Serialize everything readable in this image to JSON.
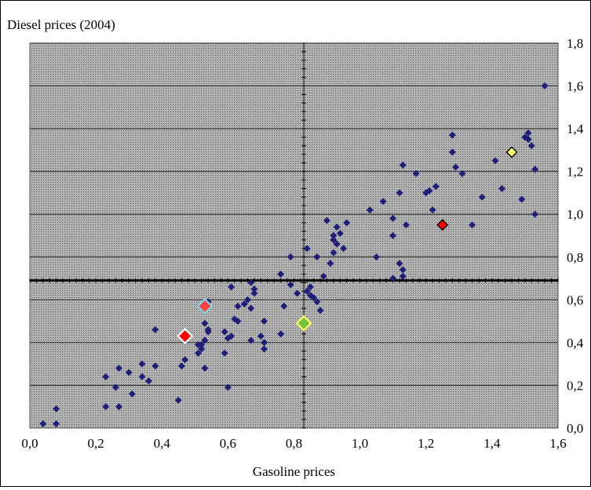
{
  "chart_data": {
    "type": "scatter",
    "title": "",
    "xlabel": "Gasoline prices",
    "ylabel": "Diesel prices (2004)",
    "xlim": [
      0.0,
      1.6
    ],
    "ylim": [
      0.0,
      1.8
    ],
    "xticks": [
      "0,0",
      "0,2",
      "0,4",
      "0,6",
      "0,8",
      "1,0",
      "1,2",
      "1,4",
      "1,6"
    ],
    "yticks": [
      "0,0",
      "0,2",
      "0,4",
      "0,6",
      "0,8",
      "1,0",
      "1,2",
      "1,4",
      "1,6",
      "1,8"
    ],
    "grid": true,
    "reference_lines": {
      "vertical_x": 0.83,
      "horizontal_y": 0.69
    },
    "colors": {
      "plot_background": "#a9a9a9",
      "points": "#1f1f7a",
      "reference_line": "#000000",
      "vertical_line": "#333333"
    },
    "series": [
      {
        "marker": "small-diamond",
        "color": "#1f1f7a",
        "points": [
          [
            0.04,
            0.02
          ],
          [
            0.08,
            0.02
          ],
          [
            0.08,
            0.09
          ],
          [
            0.23,
            0.1
          ],
          [
            0.23,
            0.24
          ],
          [
            0.26,
            0.19
          ],
          [
            0.27,
            0.1
          ],
          [
            0.27,
            0.28
          ],
          [
            0.3,
            0.26
          ],
          [
            0.31,
            0.16
          ],
          [
            0.34,
            0.3
          ],
          [
            0.34,
            0.24
          ],
          [
            0.36,
            0.22
          ],
          [
            0.38,
            0.29
          ],
          [
            0.38,
            0.46
          ],
          [
            0.45,
            0.13
          ],
          [
            0.46,
            0.29
          ],
          [
            0.47,
            0.32
          ],
          [
            0.51,
            0.35
          ],
          [
            0.51,
            0.39
          ],
          [
            0.52,
            0.37
          ],
          [
            0.52,
            0.39
          ],
          [
            0.53,
            0.28
          ],
          [
            0.53,
            0.41
          ],
          [
            0.53,
            0.49
          ],
          [
            0.54,
            0.45
          ],
          [
            0.54,
            0.46
          ],
          [
            0.54,
            0.59
          ],
          [
            0.59,
            0.35
          ],
          [
            0.59,
            0.45
          ],
          [
            0.6,
            0.42
          ],
          [
            0.6,
            0.19
          ],
          [
            0.61,
            0.43
          ],
          [
            0.61,
            0.66
          ],
          [
            0.62,
            0.51
          ],
          [
            0.63,
            0.5
          ],
          [
            0.63,
            0.57
          ],
          [
            0.65,
            0.58
          ],
          [
            0.66,
            0.6
          ],
          [
            0.67,
            0.56
          ],
          [
            0.67,
            0.41
          ],
          [
            0.67,
            0.68
          ],
          [
            0.68,
            0.65
          ],
          [
            0.68,
            0.63
          ],
          [
            0.7,
            0.43
          ],
          [
            0.71,
            0.4
          ],
          [
            0.71,
            0.37
          ],
          [
            0.71,
            0.5
          ],
          [
            0.76,
            0.44
          ],
          [
            0.76,
            0.72
          ],
          [
            0.77,
            0.57
          ],
          [
            0.79,
            0.8
          ],
          [
            0.79,
            0.67
          ],
          [
            0.81,
            0.63
          ],
          [
            0.84,
            0.84
          ],
          [
            0.84,
            0.64
          ],
          [
            0.85,
            0.62
          ],
          [
            0.85,
            0.66
          ],
          [
            0.86,
            0.61
          ],
          [
            0.87,
            0.59
          ],
          [
            0.88,
            0.55
          ],
          [
            0.87,
            0.8
          ],
          [
            0.89,
            0.71
          ],
          [
            0.9,
            0.97
          ],
          [
            0.91,
            0.77
          ],
          [
            0.92,
            0.82
          ],
          [
            0.92,
            0.88
          ],
          [
            0.92,
            0.9
          ],
          [
            0.93,
            0.94
          ],
          [
            0.93,
            0.86
          ],
          [
            0.94,
            0.91
          ],
          [
            0.95,
            0.84
          ],
          [
            0.96,
            0.96
          ],
          [
            1.03,
            1.02
          ],
          [
            1.05,
            0.8
          ],
          [
            1.07,
            1.06
          ],
          [
            1.1,
            0.9
          ],
          [
            1.1,
            0.98
          ],
          [
            1.1,
            0.7
          ],
          [
            1.12,
            1.1
          ],
          [
            1.12,
            0.77
          ],
          [
            1.13,
            0.71
          ],
          [
            1.13,
            0.74
          ],
          [
            1.13,
            1.23
          ],
          [
            1.14,
            0.95
          ],
          [
            1.17,
            1.19
          ],
          [
            1.2,
            1.1
          ],
          [
            1.21,
            1.11
          ],
          [
            1.22,
            1.02
          ],
          [
            1.23,
            1.13
          ],
          [
            1.28,
            1.37
          ],
          [
            1.28,
            1.29
          ],
          [
            1.29,
            1.22
          ],
          [
            1.31,
            1.19
          ],
          [
            1.34,
            0.95
          ],
          [
            1.37,
            1.08
          ],
          [
            1.41,
            1.25
          ],
          [
            1.43,
            1.12
          ],
          [
            1.49,
            1.07
          ],
          [
            1.5,
            1.36
          ],
          [
            1.51,
            1.35
          ],
          [
            1.51,
            1.38
          ],
          [
            1.52,
            1.32
          ],
          [
            1.53,
            1.21
          ],
          [
            1.53,
            1.0
          ],
          [
            1.56,
            1.6
          ]
        ]
      },
      {
        "marker": "highlight-diamond",
        "points": [
          {
            "x": 0.47,
            "y": 0.43,
            "fill": "#ff0000",
            "stroke": "#ffffff",
            "size": "large"
          },
          {
            "x": 0.53,
            "y": 0.57,
            "fill": "#ff4040",
            "stroke": "#7fd9e8",
            "size": "large"
          },
          {
            "x": 0.83,
            "y": 0.49,
            "fill": "#76c043",
            "stroke": "#ffff66",
            "size": "large"
          },
          {
            "x": 1.25,
            "y": 0.95,
            "fill": "#ff0000",
            "stroke": "#000000",
            "size": "medium"
          },
          {
            "x": 1.46,
            "y": 1.29,
            "fill": "#ffff66",
            "stroke": "#000000",
            "size": "medium"
          }
        ]
      }
    ]
  }
}
